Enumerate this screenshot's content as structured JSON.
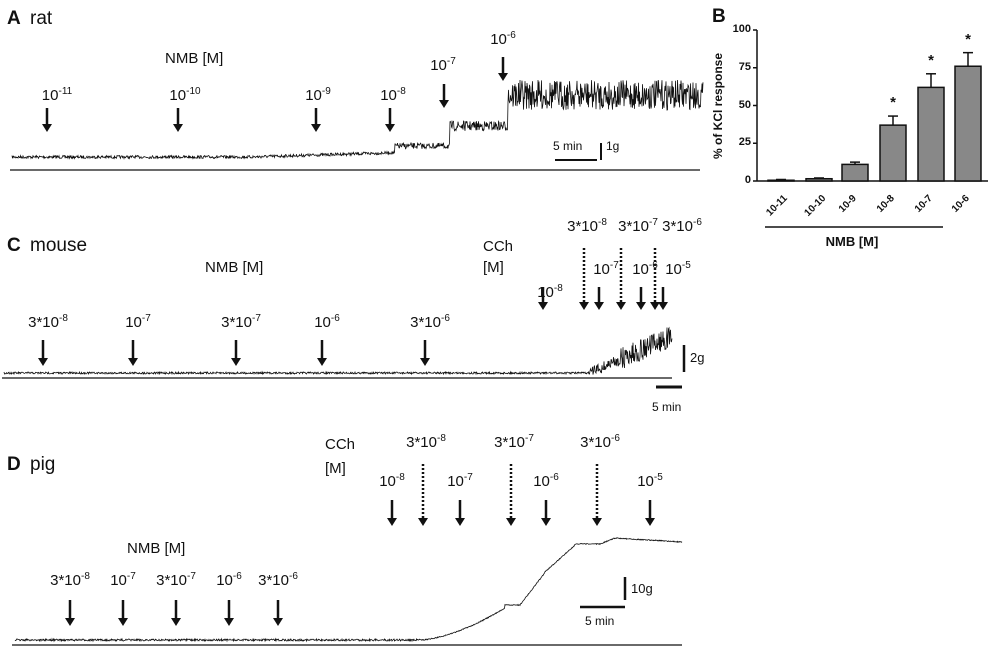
{
  "panels": {
    "A": {
      "letter": "A",
      "species": "rat",
      "agonist_label": "NMB [M]",
      "arrows": [
        {
          "base": "10",
          "exp": "-11"
        },
        {
          "base": "10",
          "exp": "-10"
        },
        {
          "base": "10",
          "exp": "-9"
        },
        {
          "base": "10",
          "exp": "-8"
        },
        {
          "base": "10",
          "exp": "-7"
        },
        {
          "base": "10",
          "exp": "-6"
        }
      ],
      "scale_time": "5 min",
      "scale_force": "1g"
    },
    "C": {
      "letter": "C",
      "species": "mouse",
      "agonist_label": "NMB [M]",
      "cch_label": "CCh",
      "cch_unit": "[M]",
      "arrows": [
        {
          "base": "3*10",
          "exp": "-8"
        },
        {
          "base": "10",
          "exp": "-7"
        },
        {
          "base": "3*10",
          "exp": "-7"
        },
        {
          "base": "10",
          "exp": "-6"
        },
        {
          "base": "3*10",
          "exp": "-6"
        }
      ],
      "cch_solid": [
        {
          "base": "10",
          "exp": "-8"
        },
        {
          "base": "10",
          "exp": "-7"
        },
        {
          "base": "10",
          "exp": "-6"
        },
        {
          "base": "10",
          "exp": "-5"
        }
      ],
      "cch_dotted": [
        {
          "base": "3*10",
          "exp": "-8"
        },
        {
          "base": "3*10",
          "exp": "-7"
        },
        {
          "base": "3*10",
          "exp": "-6"
        }
      ],
      "scale_time": "5 min",
      "scale_force": "2g"
    },
    "D": {
      "letter": "D",
      "species": "pig",
      "agonist_label": "NMB [M]",
      "cch_label": "CCh",
      "cch_unit": "[M]",
      "arrows": [
        {
          "base": "3*10",
          "exp": "-8"
        },
        {
          "base": "10",
          "exp": "-7"
        },
        {
          "base": "3*10",
          "exp": "-7"
        },
        {
          "base": "10",
          "exp": "-6"
        },
        {
          "base": "3*10",
          "exp": "-6"
        }
      ],
      "cch_solid": [
        {
          "base": "10",
          "exp": "-8"
        },
        {
          "base": "10",
          "exp": "-7"
        },
        {
          "base": "10",
          "exp": "-6"
        },
        {
          "base": "10",
          "exp": "-5"
        }
      ],
      "cch_dotted": [
        {
          "base": "3*10",
          "exp": "-8"
        },
        {
          "base": "3*10",
          "exp": "-7"
        },
        {
          "base": "3*10",
          "exp": "-6"
        }
      ],
      "scale_time": "5 min",
      "scale_force": "10g"
    }
  },
  "chart_data": {
    "type": "bar",
    "panel_letter": "B",
    "categories": [
      "10-11",
      "10-10",
      "10-9",
      "10-8",
      "10-7",
      "10-6"
    ],
    "values": [
      0.5,
      1.5,
      11,
      37,
      62,
      76
    ],
    "error_upper": [
      0.5,
      0.5,
      1.5,
      6,
      9,
      9
    ],
    "significance": [
      "",
      "",
      "",
      "*",
      "*",
      "*"
    ],
    "xlabel": "NMB [M]",
    "ylabel": "% of KCl response",
    "ylim": [
      0,
      100
    ],
    "yticks": [
      0,
      25,
      50,
      75,
      100
    ],
    "bar_color": "#888888",
    "grid": false
  }
}
